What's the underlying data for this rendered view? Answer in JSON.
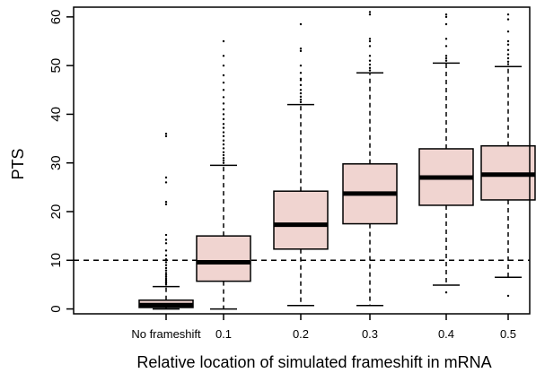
{
  "chart_data": {
    "type": "box",
    "xlabel": "Relative location of simulated frameshift in mRNA",
    "ylabel": "PTS",
    "ylim": [
      -1,
      62
    ],
    "yticks": [
      0,
      10,
      20,
      30,
      40,
      50,
      60
    ],
    "categories": [
      "No frameshift",
      "0.1",
      "0.2",
      "0.3",
      "0.4",
      "0.5"
    ],
    "reference_line": {
      "y": 10,
      "style": "dashed"
    },
    "box_color": "#f0d4d0",
    "boxes": [
      {
        "category": "No frameshift",
        "whisker_low": 0,
        "q1": 0.3,
        "median": 0.8,
        "q3": 1.8,
        "whisker_high": 4.6,
        "outliers": [
          5,
          5.3,
          5.6,
          5.9,
          6.2,
          6.6,
          7,
          7.4,
          7.9,
          8.4,
          9,
          9.6,
          10.2,
          11,
          12,
          13.5,
          14.2,
          15.2,
          21.5,
          22,
          26,
          27,
          35.5,
          36
        ]
      },
      {
        "category": "0.1",
        "whisker_low": 0,
        "q1": 5.7,
        "median": 9.6,
        "q3": 15,
        "whisker_high": 29.5,
        "outliers": [
          30,
          30.5,
          31,
          31.6,
          32.2,
          33,
          33.8,
          34.6,
          35.5,
          36.3,
          37.2,
          38,
          39,
          40,
          41,
          42.2,
          43.5,
          45,
          46.5,
          48,
          50,
          52,
          55
        ]
      },
      {
        "category": "0.2",
        "whisker_low": 0.7,
        "q1": 12.3,
        "median": 17.3,
        "q3": 24.2,
        "whisker_high": 42,
        "outliers": [
          42.5,
          43,
          43.6,
          44.3,
          45,
          46,
          47,
          47.3,
          48.5,
          50,
          53,
          53.5,
          58.5
        ]
      },
      {
        "category": "0.3",
        "whisker_low": 0.7,
        "q1": 17.5,
        "median": 23.7,
        "q3": 29.8,
        "whisker_high": 48.5,
        "outliers": [
          49,
          49.5,
          50.2,
          51,
          52,
          54,
          55,
          55.5,
          60.5,
          61
        ]
      },
      {
        "category": "0.4",
        "whisker_low": 4.9,
        "q1": 21.3,
        "median": 27,
        "q3": 32.9,
        "whisker_high": 50.5,
        "outliers": [
          3.4,
          51,
          51.5,
          52,
          54,
          55.5,
          58.5,
          60,
          60.5
        ]
      },
      {
        "category": "0.5",
        "whisker_low": 6.5,
        "q1": 22.4,
        "median": 27.6,
        "q3": 33.5,
        "whisker_high": 49.8,
        "outliers": [
          2.7,
          50.3,
          50.8,
          51.5,
          52.3,
          53.2,
          54.3,
          55,
          57,
          59.5,
          60.5
        ]
      }
    ]
  }
}
